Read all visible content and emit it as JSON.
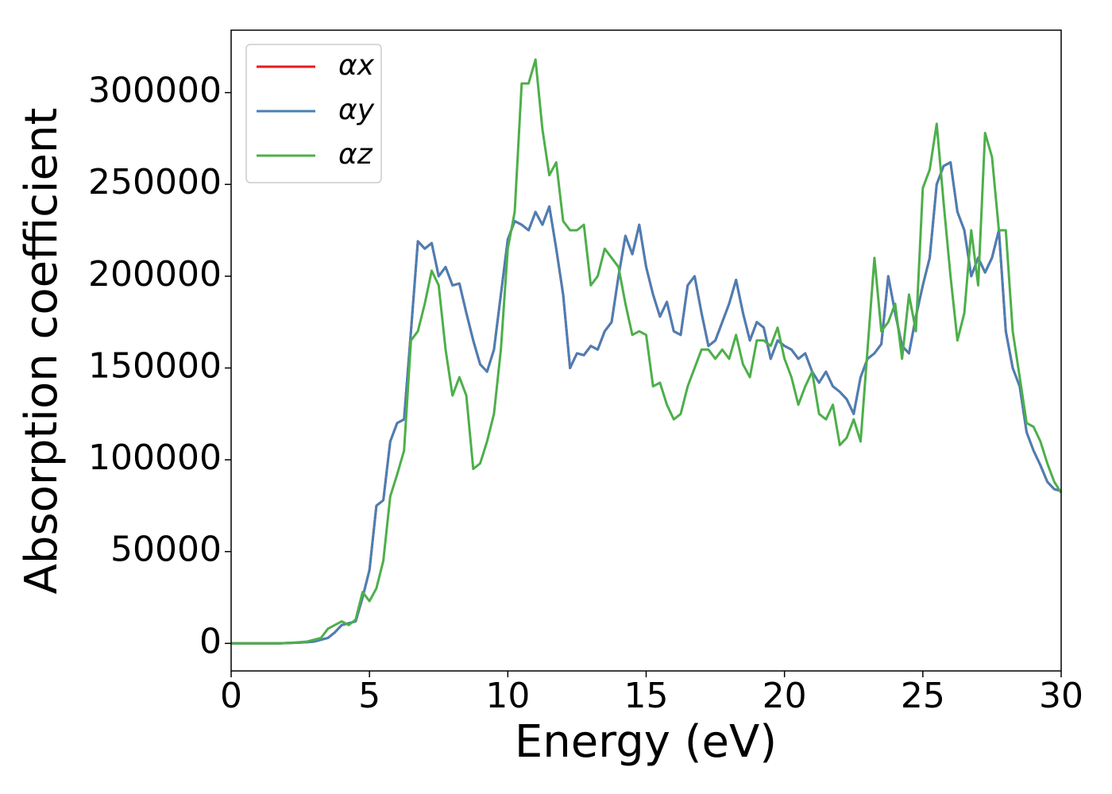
{
  "chart_data": {
    "type": "line",
    "x_label": "Energy (eV)",
    "y_label": "Absorption coefficient",
    "x": [
      0,
      0.25,
      0.5,
      0.75,
      1,
      1.25,
      1.5,
      1.75,
      2,
      2.25,
      2.5,
      2.75,
      3,
      3.25,
      3.5,
      3.75,
      4,
      4.25,
      4.5,
      4.75,
      5,
      5.25,
      5.5,
      5.75,
      6,
      6.25,
      6.5,
      6.75,
      7,
      7.25,
      7.5,
      7.75,
      8,
      8.25,
      8.5,
      8.75,
      9,
      9.25,
      9.5,
      9.75,
      10,
      10.25,
      10.5,
      10.75,
      11,
      11.25,
      11.5,
      11.75,
      12,
      12.25,
      12.5,
      12.75,
      13,
      13.25,
      13.5,
      13.75,
      14,
      14.25,
      14.5,
      14.75,
      15,
      15.25,
      15.5,
      15.75,
      16,
      16.25,
      16.5,
      16.75,
      17,
      17.25,
      17.5,
      17.75,
      18,
      18.25,
      18.5,
      18.75,
      19,
      19.25,
      19.5,
      19.75,
      20,
      20.25,
      20.5,
      20.75,
      21,
      21.25,
      21.5,
      21.75,
      22,
      22.25,
      22.5,
      22.75,
      23,
      23.25,
      23.5,
      23.75,
      24,
      24.25,
      24.5,
      24.75,
      25,
      25.25,
      25.5,
      25.75,
      26,
      26.25,
      26.5,
      26.75,
      27,
      27.25,
      27.5,
      27.75,
      28,
      28.25,
      28.5,
      28.75,
      29,
      29.25,
      29.5,
      29.75,
      30
    ],
    "series": [
      {
        "name": "αx",
        "color": "#e41a1c",
        "values": [
          0,
          0,
          0,
          0,
          0,
          0,
          0,
          0,
          200,
          300,
          500,
          700,
          1000,
          2000,
          3000,
          6000,
          10000,
          11000,
          12000,
          25000,
          40000,
          75000,
          78000,
          110000,
          120000,
          122000,
          170000,
          219000,
          215000,
          218000,
          200000,
          205000,
          195000,
          196000,
          180000,
          165000,
          152000,
          148000,
          160000,
          190000,
          220000,
          230000,
          228000,
          225000,
          235000,
          228000,
          238000,
          215000,
          190000,
          150000,
          158000,
          157000,
          162000,
          160000,
          170000,
          175000,
          200000,
          222000,
          212000,
          228000,
          205000,
          190000,
          178000,
          186000,
          170000,
          168000,
          195000,
          200000,
          180000,
          162000,
          165000,
          175000,
          185000,
          198000,
          180000,
          165000,
          175000,
          172000,
          155000,
          165000,
          162000,
          160000,
          155000,
          158000,
          148000,
          142000,
          148000,
          140000,
          137000,
          133000,
          125000,
          145000,
          155000,
          158000,
          163000,
          200000,
          180000,
          162000,
          158000,
          178000,
          195000,
          210000,
          250000,
          260000,
          262000,
          235000,
          225000,
          200000,
          210000,
          202000,
          210000,
          225000,
          170000,
          150000,
          140000,
          115000,
          105000,
          97000,
          88000,
          84000,
          83000
        ]
      },
      {
        "name": "αy",
        "color": "#4a7fb5",
        "values": [
          0,
          0,
          0,
          0,
          0,
          0,
          0,
          0,
          200,
          300,
          500,
          700,
          1000,
          2000,
          3000,
          6000,
          10000,
          11000,
          12000,
          25000,
          40000,
          75000,
          78000,
          110000,
          120000,
          122000,
          170000,
          219000,
          215000,
          218000,
          200000,
          205000,
          195000,
          196000,
          180000,
          165000,
          152000,
          148000,
          160000,
          190000,
          220000,
          230000,
          228000,
          225000,
          235000,
          228000,
          238000,
          215000,
          190000,
          150000,
          158000,
          157000,
          162000,
          160000,
          170000,
          175000,
          200000,
          222000,
          212000,
          228000,
          205000,
          190000,
          178000,
          186000,
          170000,
          168000,
          195000,
          200000,
          180000,
          162000,
          165000,
          175000,
          185000,
          198000,
          180000,
          165000,
          175000,
          172000,
          155000,
          165000,
          162000,
          160000,
          155000,
          158000,
          148000,
          142000,
          148000,
          140000,
          137000,
          133000,
          125000,
          145000,
          155000,
          158000,
          163000,
          200000,
          180000,
          162000,
          158000,
          178000,
          195000,
          210000,
          250000,
          260000,
          262000,
          235000,
          225000,
          200000,
          210000,
          202000,
          210000,
          225000,
          170000,
          150000,
          140000,
          115000,
          105000,
          97000,
          88000,
          84000,
          83000
        ]
      },
      {
        "name": "αz",
        "color": "#4daf4a",
        "values": [
          0,
          0,
          0,
          0,
          0,
          0,
          0,
          0,
          200,
          400,
          700,
          1000,
          2000,
          3000,
          8000,
          10000,
          12000,
          10000,
          13000,
          28000,
          23000,
          30000,
          45000,
          80000,
          92000,
          105000,
          165000,
          170000,
          185000,
          203000,
          195000,
          160000,
          135000,
          145000,
          135000,
          95000,
          98000,
          110000,
          125000,
          160000,
          215000,
          235000,
          305000,
          305000,
          318000,
          280000,
          255000,
          262000,
          230000,
          225000,
          225000,
          228000,
          195000,
          200000,
          215000,
          210000,
          205000,
          185000,
          168000,
          170000,
          168000,
          140000,
          142000,
          130000,
          122000,
          125000,
          140000,
          150000,
          160000,
          160000,
          155000,
          160000,
          155000,
          168000,
          152000,
          145000,
          165000,
          165000,
          162000,
          172000,
          155000,
          145000,
          130000,
          140000,
          148000,
          125000,
          122000,
          130000,
          108000,
          112000,
          122000,
          110000,
          160000,
          210000,
          170000,
          175000,
          185000,
          155000,
          190000,
          170000,
          248000,
          258000,
          283000,
          240000,
          200000,
          165000,
          180000,
          225000,
          195000,
          278000,
          265000,
          225000,
          225000,
          170000,
          145000,
          120000,
          118000,
          110000,
          98000,
          88000,
          82000
        ]
      }
    ],
    "xlim": [
      0,
      30
    ],
    "xticks": [
      0,
      5,
      10,
      15,
      20,
      25,
      30
    ],
    "ylim": [
      -15000,
      334000
    ],
    "yticks": [
      0,
      50000,
      100000,
      150000,
      200000,
      250000,
      300000
    ],
    "legend": "upper left"
  }
}
